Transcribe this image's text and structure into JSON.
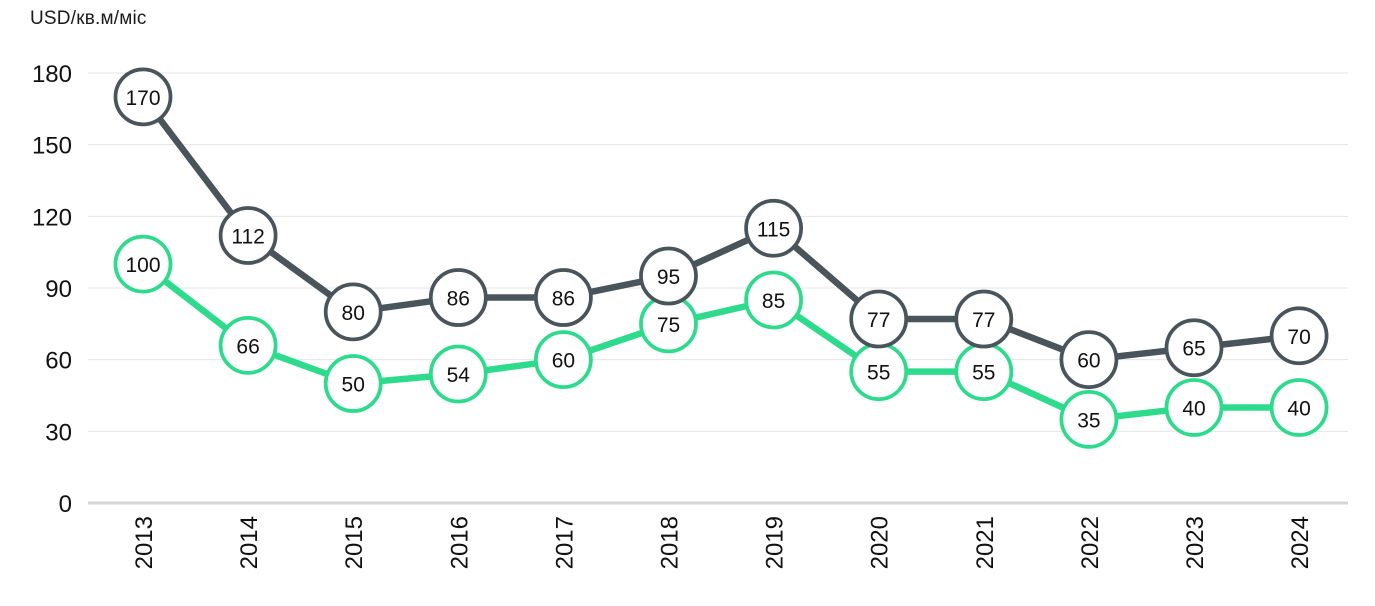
{
  "chart_data": {
    "type": "line",
    "title": "USD/кв.м/міс",
    "xlabel": "",
    "ylabel": "USD/кв.м/міс",
    "categories": [
      "2013",
      "2014",
      "2015",
      "2016",
      "2017",
      "2018",
      "2019",
      "2020",
      "2021",
      "2022",
      "2023",
      "2024"
    ],
    "series": [
      {
        "name": "green-line",
        "color": "#2EDB8C",
        "values": [
          100,
          66,
          50,
          54,
          60,
          75,
          85,
          55,
          55,
          35,
          40,
          40
        ]
      },
      {
        "name": "dark-line",
        "color": "#4A545B",
        "values": [
          170,
          112,
          80,
          86,
          86,
          95,
          115,
          77,
          77,
          60,
          65,
          70
        ]
      }
    ],
    "ylim": [
      0,
      180
    ],
    "yticks": [
      0,
      30,
      60,
      90,
      120,
      150,
      180
    ],
    "grid": true,
    "legend_position": "none",
    "marker_labels": true,
    "marker_fill": "#FFFFFF",
    "x_tick_rotation": -90
  }
}
